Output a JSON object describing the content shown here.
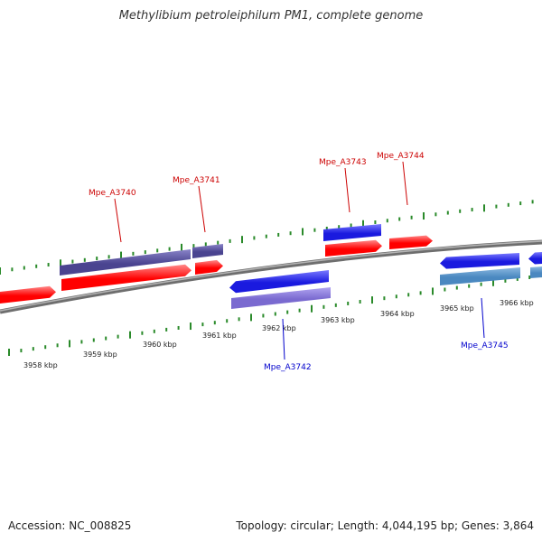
{
  "title": "Methylibium petroleiphilum PM1, complete genome",
  "footer": {
    "accession": "Accession: NC_008825",
    "stats": "Topology: circular; Length: 4,044,195 bp; Genes: 3,864"
  },
  "colors": {
    "backbone": "#8a8a8a",
    "tick": "#2a8a2a",
    "forward_gene": "#ff0000",
    "reverse_gene": "#1a1adf",
    "dark_purple": "#4a4490",
    "light_purple": "#7a6ad0",
    "steel_blue": "#4a88c0",
    "label_forward": "#cc0000",
    "label_reverse": "#0000cc"
  },
  "scale_labels": [
    "3958 kbp",
    "3959 kbp",
    "3960 kbp",
    "3961 kbp",
    "3962 kbp",
    "3963 kbp",
    "3964 kbp",
    "3965 kbp",
    "3966 kbp"
  ],
  "gene_labels": [
    {
      "text": "Mpe_A3740",
      "strand": "forward"
    },
    {
      "text": "Mpe_A3741",
      "strand": "forward"
    },
    {
      "text": "Mpe_A3743",
      "strand": "forward"
    },
    {
      "text": "Mpe_A3744",
      "strand": "forward"
    },
    {
      "text": "Mpe_A3742",
      "strand": "reverse"
    },
    {
      "text": "Mpe_A3745",
      "strand": "reverse"
    }
  ]
}
